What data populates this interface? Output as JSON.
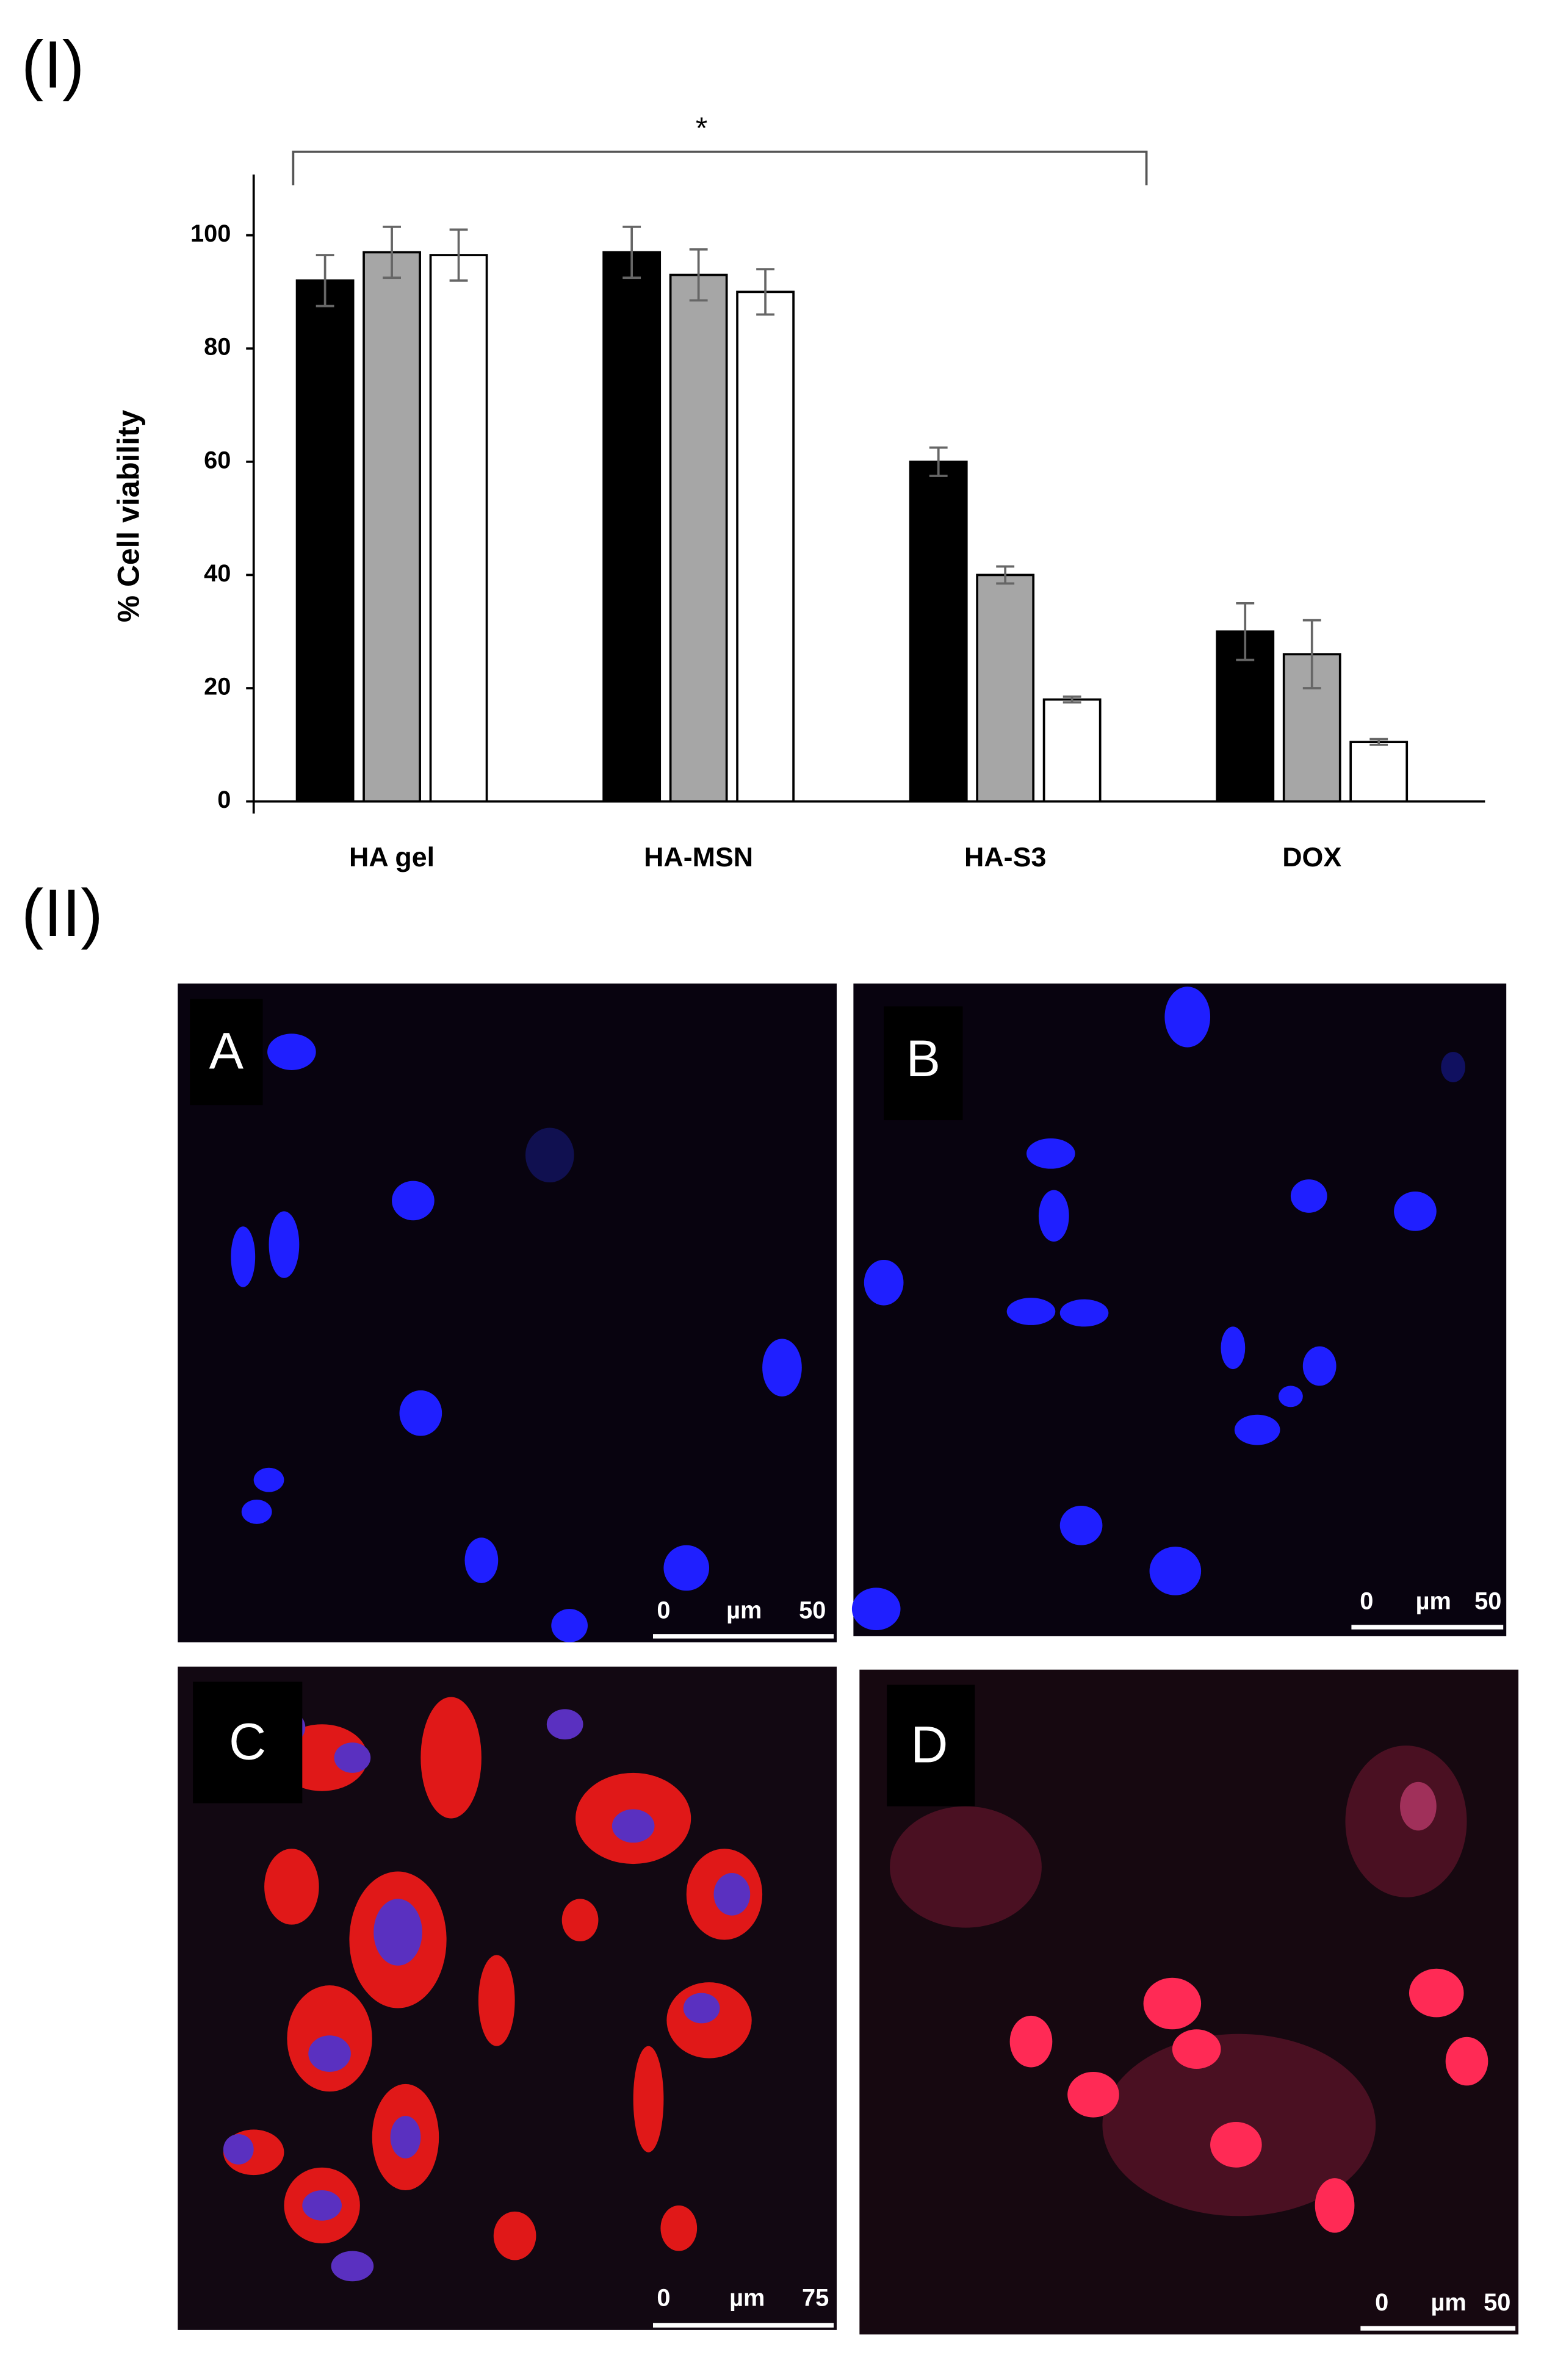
{
  "panel_labels": {
    "top": "(I)",
    "bottom": "(II)"
  },
  "chart_data": {
    "type": "bar",
    "y_label": "% Cell viability",
    "annotation": "*",
    "categories": [
      "HA gel",
      "HA-MSN",
      "HA-S3",
      "DOX"
    ],
    "series": [
      {
        "color": "#000000",
        "values": [
          92,
          97,
          60,
          30
        ],
        "errors": [
          4.5,
          4.5,
          2.5,
          5
        ]
      },
      {
        "color": "#a6a6a6",
        "values": [
          97,
          93,
          40,
          26
        ],
        "errors": [
          4.5,
          4.5,
          1.5,
          6
        ]
      },
      {
        "color": "#ffffff",
        "values": [
          96.5,
          90,
          18,
          10.5
        ],
        "errors": [
          4.5,
          4,
          0.5,
          0.5
        ]
      }
    ],
    "ylim": [
      0,
      110
    ],
    "yticks": [
      0,
      20,
      40,
      60,
      80,
      100
    ]
  },
  "micrographs": [
    {
      "label": "A",
      "scale_bar": [
        "0",
        "µm",
        "50"
      ]
    },
    {
      "label": "B",
      "scale_bar": [
        "0",
        "µm",
        "50"
      ]
    },
    {
      "label": "C",
      "scale_bar": [
        "0",
        "µm",
        "75"
      ]
    },
    {
      "label": "D",
      "scale_bar": [
        "0",
        "µm",
        "50"
      ]
    }
  ]
}
